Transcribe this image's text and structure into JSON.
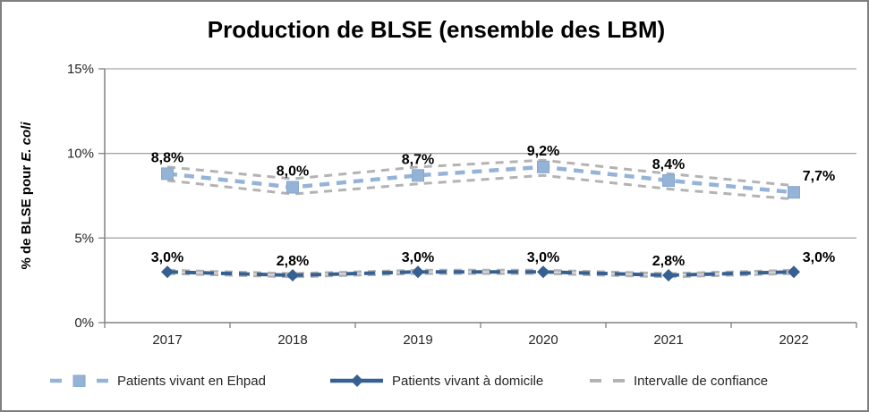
{
  "chart_data": {
    "type": "line",
    "title": "Production de BLSE (ensemble des LBM)",
    "ylabel": {
      "prefix": "% de BLSE pour ",
      "italic": "E. coli"
    },
    "categories": [
      "2017",
      "2018",
      "2019",
      "2020",
      "2021",
      "2022"
    ],
    "ylim": [
      0,
      15
    ],
    "grid": true,
    "legend_position": "bottom",
    "yticks": [
      {
        "value": 0,
        "label": "0%"
      },
      {
        "value": 5,
        "label": "5%"
      },
      {
        "value": 10,
        "label": "10%"
      },
      {
        "value": 15,
        "label": "15%"
      }
    ],
    "series": [
      {
        "name": "Patients vivant en Ehpad",
        "marker": "square",
        "line_style": "dashed",
        "values": [
          8.8,
          8.0,
          8.7,
          9.2,
          8.4,
          7.7
        ],
        "labels": [
          "8,8%",
          "8,0%",
          "8,7%",
          "9,2%",
          "8,4%",
          "7,7%"
        ]
      },
      {
        "name": "Patients vivant à domicile",
        "marker": "diamond",
        "line_style": "dashed",
        "values": [
          3.0,
          2.8,
          3.0,
          3.0,
          2.8,
          3.0
        ],
        "labels": [
          "3,0%",
          "2,8%",
          "3,0%",
          "3,0%",
          "2,8%",
          "3,0%"
        ]
      }
    ],
    "confidence_interval": {
      "name": "Intervalle de confiance",
      "line_style": "dashed",
      "bands": [
        {
          "upper": [
            9.2,
            8.5,
            9.2,
            9.6,
            8.8,
            8.1
          ],
          "lower": [
            8.4,
            7.6,
            8.2,
            8.7,
            7.9,
            7.3
          ]
        },
        {
          "upper": [
            3.1,
            2.9,
            3.1,
            3.1,
            2.9,
            3.1
          ],
          "lower": [
            2.9,
            2.7,
            2.9,
            2.9,
            2.7,
            2.9
          ]
        }
      ]
    },
    "colors": {
      "ehpad": "#95B3D7",
      "domicile": "#376092",
      "interval": "#B3B3B3",
      "grid": "#A6A6A6",
      "axis": "#808080",
      "data_label": "#000000",
      "tick_label": "#262626"
    }
  }
}
